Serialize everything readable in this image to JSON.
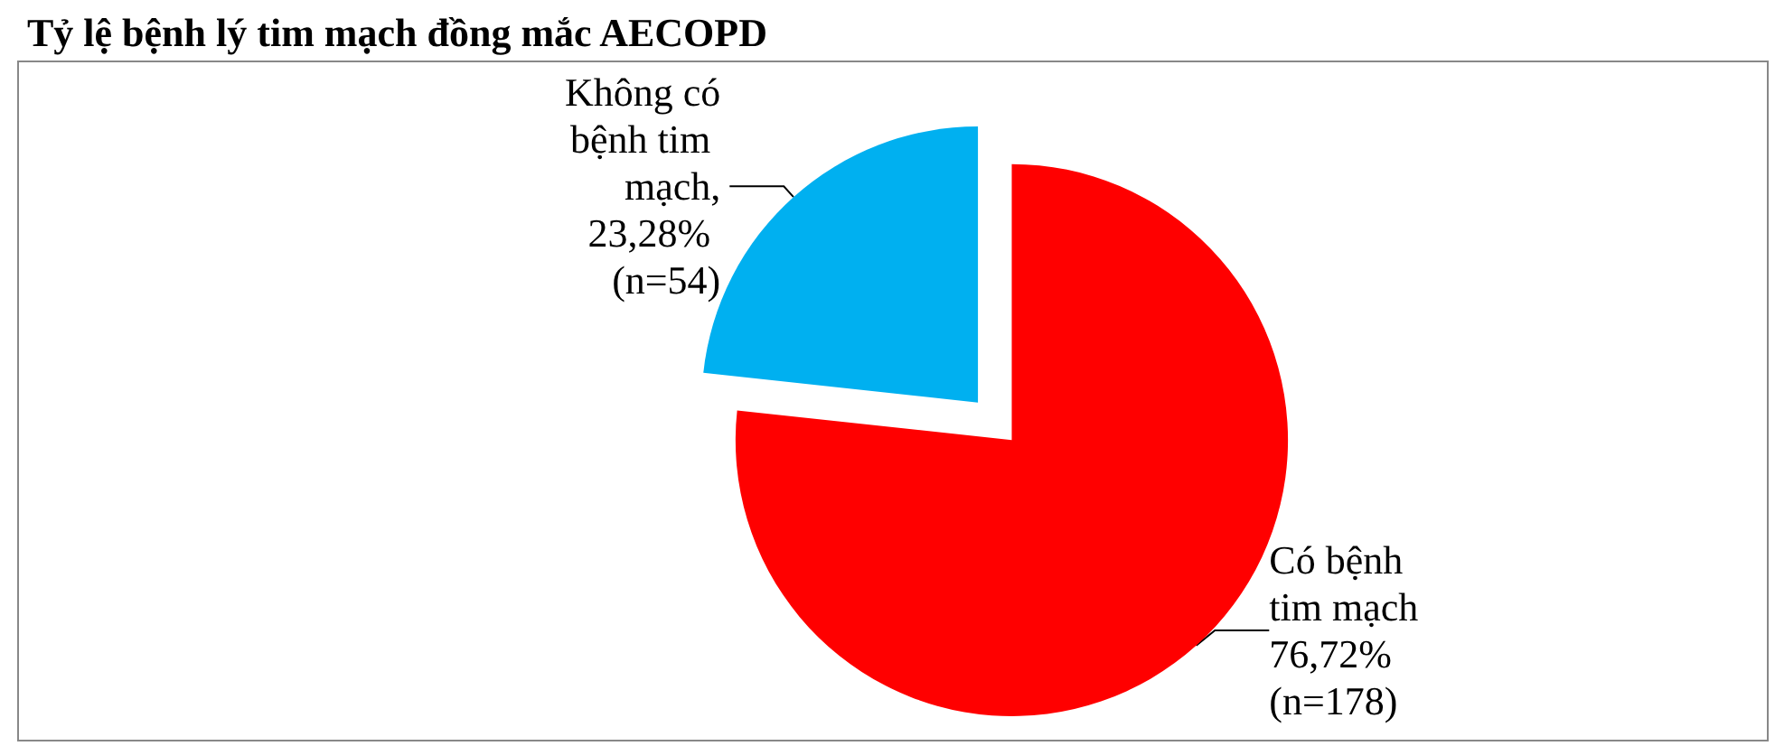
{
  "chart_data": {
    "type": "pie",
    "title": "Tỷ lệ bệnh lý tim mạch đồng mắc AECOPD",
    "categories": [
      "Có bệnh tim mạch",
      "Không có bệnh tim mạch"
    ],
    "values": [
      76.72,
      23.28
    ],
    "colors": [
      "#ff0000",
      "#00b0f0"
    ],
    "value_labels": [
      "76,72% (n=178)",
      ", 23,28% (n=54)"
    ],
    "legend": false
  }
}
